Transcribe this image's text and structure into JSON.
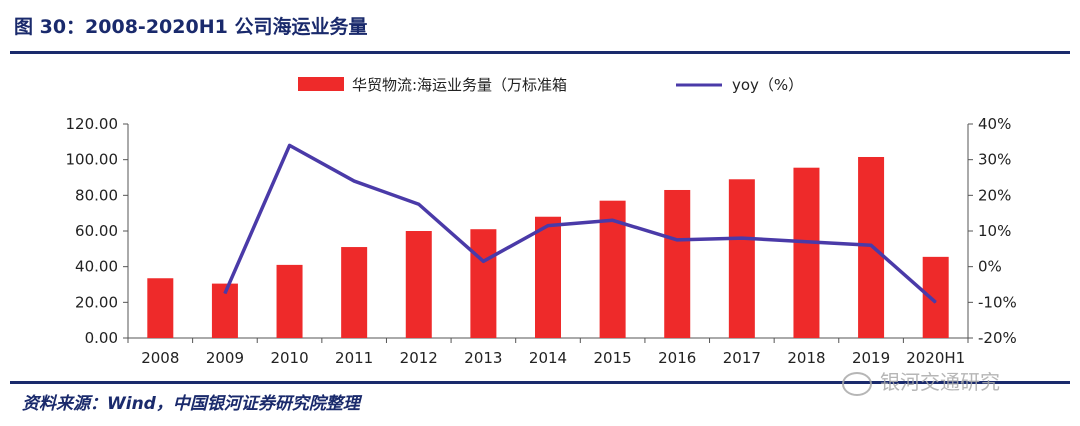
{
  "figure_title": "图 30：2008-2020H1 公司海运业务量",
  "source_note": "资料来源：Wind，中国银河证券研究院整理",
  "watermark": "银河交通研究",
  "colors": {
    "bar": "#ee2a2a",
    "line": "#4a3aa8",
    "accent": "#1a2a6c"
  },
  "chart_data": {
    "type": "bar",
    "categories": [
      "2008",
      "2009",
      "2010",
      "2011",
      "2012",
      "2013",
      "2014",
      "2015",
      "2016",
      "2017",
      "2018",
      "2019",
      "2020H1"
    ],
    "series": [
      {
        "name": "华贸物流:海运业务量（万标准箱",
        "type": "bar",
        "axis": "left",
        "values": [
          33.5,
          30.5,
          41.0,
          51.0,
          60.0,
          61.0,
          68.0,
          77.0,
          83.0,
          89.0,
          95.5,
          101.5,
          45.5
        ]
      },
      {
        "name": "yoy（%）",
        "type": "line",
        "axis": "right",
        "values": [
          null,
          -7.5,
          34.0,
          24.0,
          17.5,
          1.5,
          11.5,
          13.0,
          7.5,
          8.0,
          7.0,
          6.0,
          -10.0
        ]
      }
    ],
    "y_left": {
      "min": 0,
      "max": 120,
      "ticks": [
        "0.00",
        "20.00",
        "40.00",
        "60.00",
        "80.00",
        "100.00",
        "120.00"
      ]
    },
    "y_right": {
      "min": -20,
      "max": 40,
      "ticks": [
        "-20%",
        "-10%",
        "0%",
        "10%",
        "20%",
        "30%",
        "40%"
      ]
    },
    "legend_position": "top-center",
    "grid": false
  }
}
